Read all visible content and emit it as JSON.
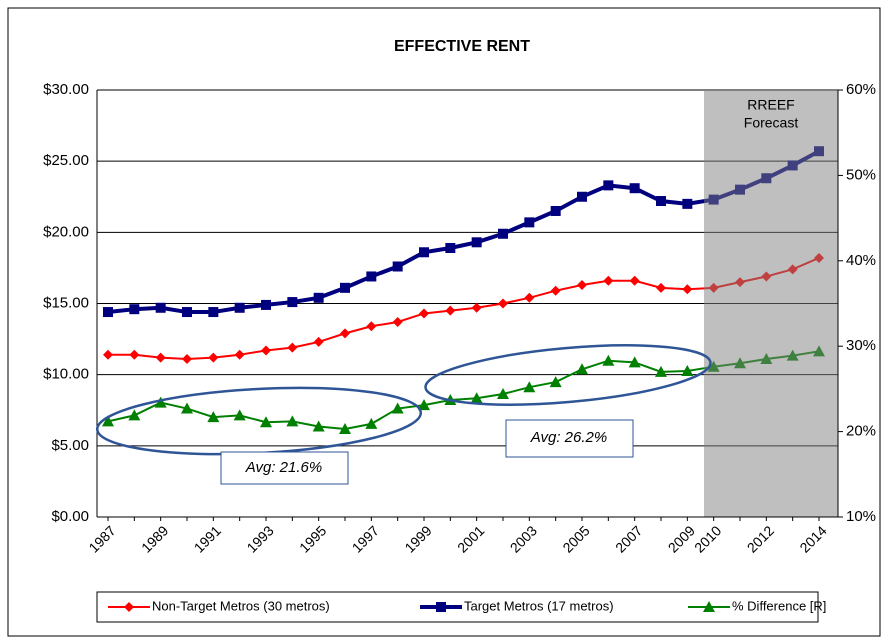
{
  "chart_data": {
    "type": "line",
    "title": "EFFECTIVE RENT",
    "categories": [
      "1987",
      null,
      "1989",
      null,
      "1991",
      null,
      "1993",
      null,
      "1995",
      null,
      "1997",
      null,
      "1999",
      null,
      "2001",
      null,
      "2003",
      null,
      "2005",
      null,
      "2007",
      null,
      "2009",
      "2010",
      null,
      "2012",
      null,
      "2014"
    ],
    "series": [
      {
        "name": "Non-Target Metros (30 metros)",
        "color": "#ff0000",
        "marker": "diamond",
        "values": [
          11.4,
          11.4,
          11.2,
          11.1,
          11.2,
          11.4,
          11.7,
          11.9,
          12.3,
          12.9,
          13.4,
          13.7,
          14.3,
          14.5,
          14.7,
          15.0,
          15.4,
          15.9,
          16.3,
          16.6,
          16.6,
          16.1,
          16.0,
          16.1,
          16.5,
          16.9,
          17.4,
          18.2
        ]
      },
      {
        "name": "Target Metros (17 metros)",
        "color": "#00007f",
        "marker": "square",
        "values": [
          14.4,
          14.6,
          14.7,
          14.4,
          14.4,
          14.7,
          14.9,
          15.1,
          15.4,
          16.1,
          16.9,
          17.6,
          18.6,
          18.9,
          19.3,
          19.9,
          20.7,
          21.5,
          22.5,
          23.3,
          23.1,
          22.2,
          22.0,
          22.3,
          23.0,
          23.8,
          24.7,
          25.7
        ]
      },
      {
        "name": "% Difference [R]",
        "color": "#008000",
        "marker": "triangle",
        "axis": "y2",
        "values": [
          21.2,
          21.9,
          23.4,
          22.7,
          21.7,
          21.9,
          21.1,
          21.2,
          20.6,
          20.3,
          20.9,
          22.7,
          23.1,
          23.7,
          23.9,
          24.4,
          25.2,
          25.8,
          27.3,
          28.3,
          28.1,
          27.0,
          27.1,
          27.6,
          28.0,
          28.5,
          28.9,
          29.4
        ]
      }
    ],
    "ylim": [
      0,
      30
    ],
    "yticks": [
      {
        "value": 0,
        "label": "$0.00"
      },
      {
        "value": 5,
        "label": "$5.00"
      },
      {
        "value": 10,
        "label": "$10.00"
      },
      {
        "value": 15,
        "label": "$15.00"
      },
      {
        "value": 20,
        "label": "$20.00"
      },
      {
        "value": 25,
        "label": "$25.00"
      },
      {
        "value": 30,
        "label": "$30.00"
      }
    ],
    "y2lim": [
      10,
      60
    ],
    "y2ticks": [
      {
        "value": 10,
        "label": "10%"
      },
      {
        "value": 20,
        "label": "20%"
      },
      {
        "value": 30,
        "label": "30%"
      },
      {
        "value": 40,
        "label": "40%"
      },
      {
        "value": 50,
        "label": "50%"
      },
      {
        "value": 60,
        "label": "60%"
      }
    ],
    "grid": true,
    "legend": "bottom",
    "forecast_label": [
      "RREEF",
      "Forecast"
    ],
    "annotations": [
      "Avg: 21.6%",
      "Avg: 26.2%"
    ]
  }
}
